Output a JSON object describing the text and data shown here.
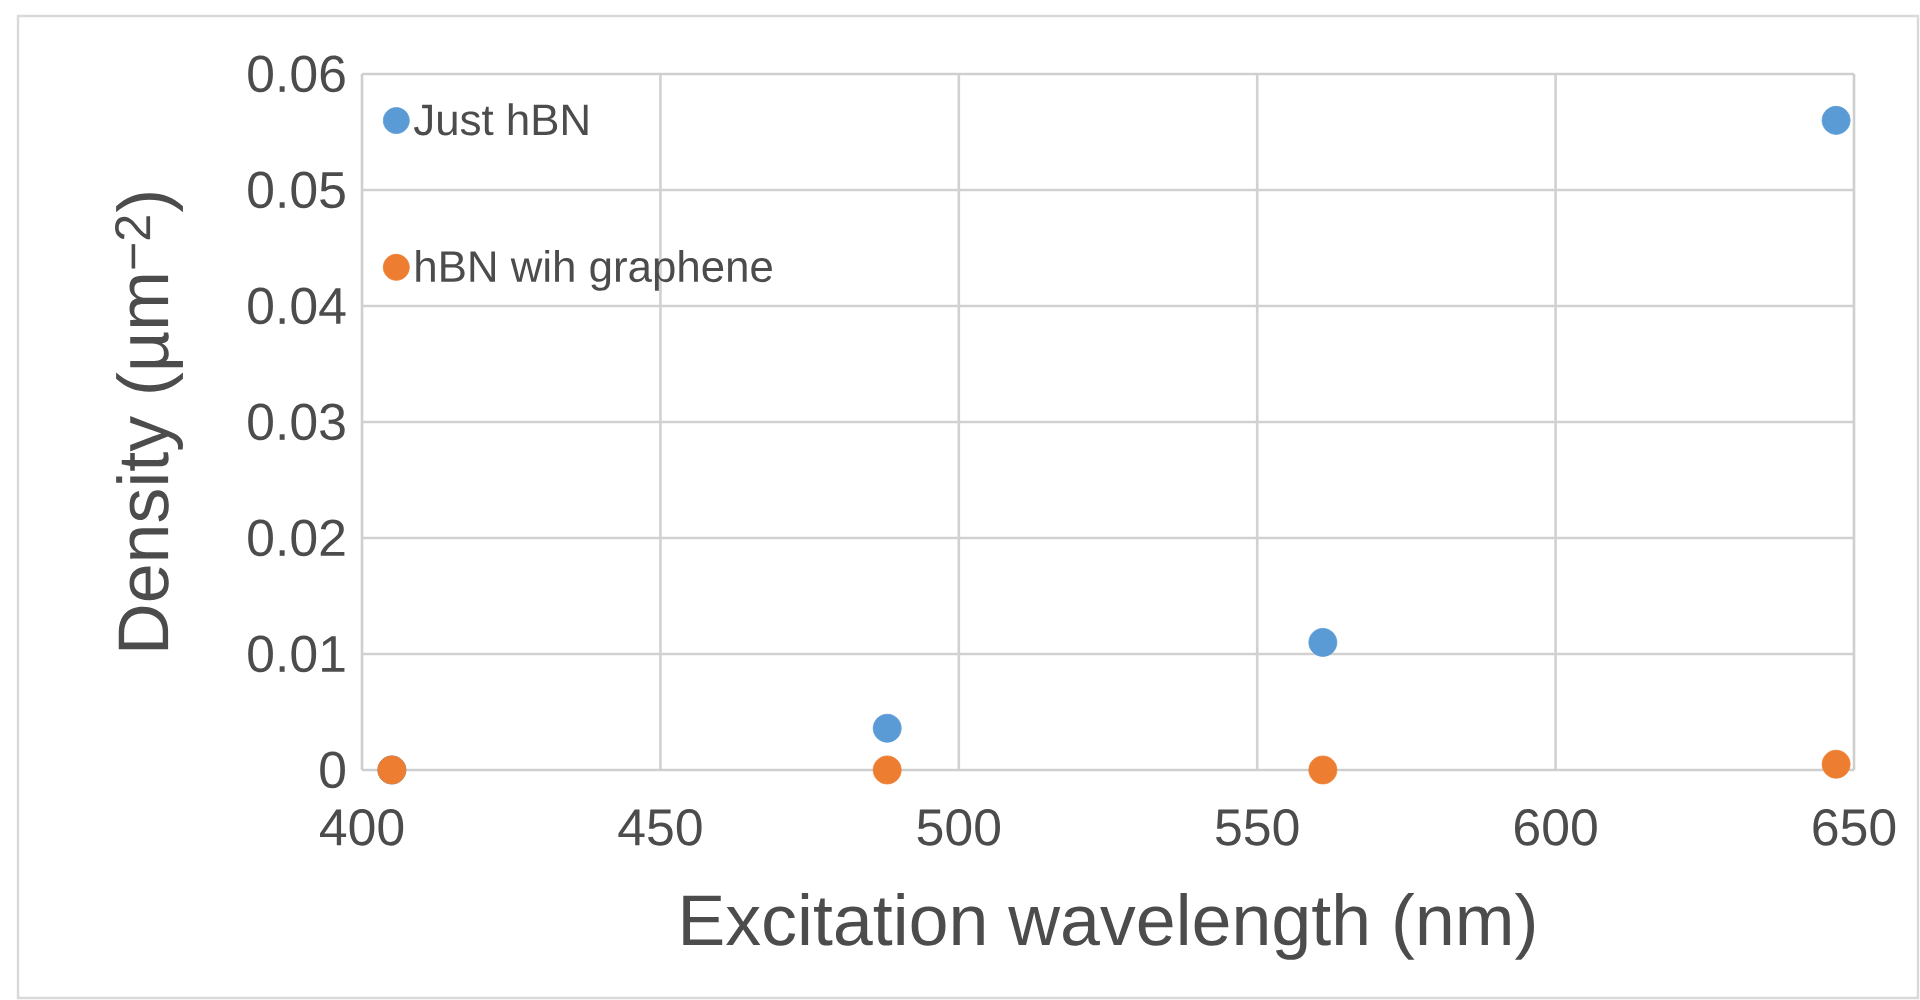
{
  "chart_data": {
    "type": "scatter",
    "xlabel": "Excitation wavelength (nm)",
    "ylabel": "Density (µm$^{−2}$)",
    "x": [
      405,
      488,
      561,
      647
    ],
    "xlim": [
      400,
      650
    ],
    "xticks": [
      400,
      450,
      500,
      550,
      600,
      650
    ],
    "ylim": [
      0,
      0.06
    ],
    "yticks": [
      0,
      0.01,
      0.02,
      0.03,
      0.04,
      0.05,
      0.06
    ],
    "grid": true,
    "legend": "top left",
    "marker": "circle",
    "series": [
      {
        "name": "Just hBN",
        "color": "#5b9bd5",
        "values": [
          0,
          0.0036,
          0.011,
          0.056
        ]
      },
      {
        "name": "hBN wih graphene",
        "color": "#ed7d31",
        "values": [
          0,
          0,
          0,
          0.0005
        ]
      }
    ]
  }
}
